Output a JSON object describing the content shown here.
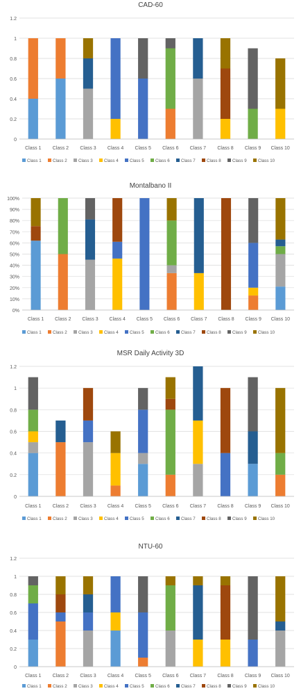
{
  "colors": {
    "Class 1": "#5b9bd5",
    "Class 2": "#ed7d31",
    "Class 3": "#a5a5a5",
    "Class 4": "#ffc000",
    "Class 5": "#4472c4",
    "Class 6": "#70ad47",
    "Class 7": "#255e91",
    "Class 8": "#9e480e",
    "Class 9": "#636363",
    "Class 10": "#997300"
  },
  "chart_data": [
    {
      "type": "bar",
      "stacked": true,
      "title": "CAD-60",
      "categories": [
        "Class 1",
        "Class 2",
        "Class 3",
        "Class 4",
        "Class 5",
        "Class 6",
        "Class 7",
        "Class 8",
        "Class 9",
        "Class 10"
      ],
      "yticks": [
        "0",
        "0.2",
        "0.4",
        "0.6",
        "0.8",
        "1",
        "1.2"
      ],
      "ylim": [
        0,
        1.2
      ],
      "grid": true,
      "legend": "bottom",
      "series": [
        {
          "name": "Class 1",
          "values": [
            0.4,
            0.6,
            0,
            0,
            0,
            0,
            0,
            0,
            0,
            0
          ]
        },
        {
          "name": "Class 2",
          "values": [
            0.6,
            0.4,
            0,
            0,
            0,
            0.3,
            0,
            0,
            0,
            0
          ]
        },
        {
          "name": "Class 3",
          "values": [
            0,
            0,
            0.5,
            0,
            0,
            0,
            0.6,
            0,
            0,
            0
          ]
        },
        {
          "name": "Class 4",
          "values": [
            0,
            0,
            0,
            0.2,
            0,
            0,
            0,
            0.2,
            0,
            0.3
          ]
        },
        {
          "name": "Class 5",
          "values": [
            0,
            0,
            0,
            0.8,
            0.6,
            0,
            0,
            0,
            0,
            0
          ]
        },
        {
          "name": "Class 6",
          "values": [
            0,
            0,
            0,
            0,
            0,
            0.6,
            0,
            0,
            0.3,
            0
          ]
        },
        {
          "name": "Class 7",
          "values": [
            0,
            0,
            0.3,
            0,
            0,
            0,
            0.4,
            0,
            0,
            0
          ]
        },
        {
          "name": "Class 8",
          "values": [
            0,
            0,
            0,
            0,
            0,
            0,
            0,
            0.5,
            0,
            0
          ]
        },
        {
          "name": "Class 9",
          "values": [
            0,
            0,
            0,
            0,
            0.4,
            0.1,
            0,
            0,
            0.6,
            0
          ]
        },
        {
          "name": "Class 10",
          "values": [
            0,
            0,
            0.2,
            0,
            0,
            0,
            0,
            0.3,
            0,
            0.5
          ]
        }
      ]
    },
    {
      "type": "bar",
      "stacked": true,
      "title": "Montalbano II",
      "categories": [
        "Class 1",
        "Class 2",
        "Class 3",
        "Class 4",
        "Class 5",
        "Class 6",
        "Class 7",
        "Class 8",
        "Class 9",
        "Class 10"
      ],
      "yticks": [
        "0%",
        "10%",
        "20%",
        "30%",
        "40%",
        "50%",
        "60%",
        "70%",
        "80%",
        "90%",
        "100%"
      ],
      "ylim": [
        0,
        1
      ],
      "grid": true,
      "legend": "bottom",
      "series": [
        {
          "name": "Class 1",
          "values": [
            0.62,
            0,
            0,
            0,
            0,
            0,
            0,
            0,
            0,
            0.21
          ]
        },
        {
          "name": "Class 2",
          "values": [
            0,
            0.5,
            0,
            0,
            0,
            0.33,
            0,
            0,
            0.13,
            0
          ]
        },
        {
          "name": "Class 3",
          "values": [
            0,
            0,
            0.45,
            0,
            0,
            0.07,
            0,
            0,
            0,
            0.29
          ]
        },
        {
          "name": "Class 4",
          "values": [
            0,
            0,
            0,
            0.46,
            0,
            0,
            0.33,
            0,
            0.07,
            0
          ]
        },
        {
          "name": "Class 5",
          "values": [
            0,
            0,
            0,
            0.15,
            1.0,
            0,
            0,
            0,
            0.4,
            0
          ]
        },
        {
          "name": "Class 6",
          "values": [
            0,
            0.5,
            0,
            0,
            0,
            0.4,
            0,
            0,
            0,
            0.07
          ]
        },
        {
          "name": "Class 7",
          "values": [
            0,
            0,
            0.36,
            0,
            0,
            0,
            0.67,
            0,
            0,
            0.06
          ]
        },
        {
          "name": "Class 8",
          "values": [
            0.13,
            0,
            0,
            0.39,
            0,
            0,
            0,
            1.0,
            0,
            0
          ]
        },
        {
          "name": "Class 9",
          "values": [
            0,
            0,
            0.19,
            0,
            0,
            0,
            0,
            0,
            0.4,
            0
          ]
        },
        {
          "name": "Class 10",
          "values": [
            0.25,
            0,
            0,
            0,
            0,
            0.2,
            0,
            0,
            0,
            0.37
          ]
        }
      ]
    },
    {
      "type": "bar",
      "stacked": true,
      "title": "MSR Daily Activity 3D",
      "categories": [
        "Class 1",
        "Class 2",
        "Class 3",
        "Class 4",
        "Class 5",
        "Class 6",
        "Class 7",
        "Class 8",
        "Class 9",
        "Class 10"
      ],
      "yticks": [
        "0",
        "0.2",
        "0.4",
        "0.6",
        "0.8",
        "1",
        "1.2"
      ],
      "ylim": [
        0,
        1.2
      ],
      "grid": true,
      "legend": "bottom",
      "series": [
        {
          "name": "Class 1",
          "values": [
            0.4,
            0,
            0,
            0,
            0.3,
            0,
            0,
            0,
            0.3,
            0
          ]
        },
        {
          "name": "Class 2",
          "values": [
            0,
            0.5,
            0,
            0.1,
            0,
            0.2,
            0,
            0,
            0,
            0.2
          ]
        },
        {
          "name": "Class 3",
          "values": [
            0.1,
            0,
            0.5,
            0,
            0.1,
            0,
            0.3,
            0,
            0,
            0
          ]
        },
        {
          "name": "Class 4",
          "values": [
            0.1,
            0,
            0,
            0.3,
            0,
            0,
            0.4,
            0,
            0,
            0
          ]
        },
        {
          "name": "Class 5",
          "values": [
            0,
            0,
            0.2,
            0,
            0.4,
            0,
            0,
            0.4,
            0,
            0
          ]
        },
        {
          "name": "Class 6",
          "values": [
            0.2,
            0,
            0,
            0,
            0,
            0.6,
            0,
            0,
            0,
            0.2
          ]
        },
        {
          "name": "Class 7",
          "values": [
            0,
            0.2,
            0,
            0,
            0,
            0,
            0.5,
            0,
            0.3,
            0
          ]
        },
        {
          "name": "Class 8",
          "values": [
            0,
            0,
            0.3,
            0,
            0,
            0.1,
            0,
            0.6,
            0,
            0
          ]
        },
        {
          "name": "Class 9",
          "values": [
            0.3,
            0,
            0,
            0,
            0.2,
            0,
            0,
            0,
            0.5,
            0
          ]
        },
        {
          "name": "Class 10",
          "values": [
            0,
            0,
            0,
            0.2,
            0,
            0.2,
            0,
            0,
            0,
            0.6
          ]
        }
      ]
    },
    {
      "type": "bar",
      "stacked": true,
      "title": "NTU-60",
      "categories": [
        "Class 1",
        "Class 2",
        "Class 3",
        "Class 4",
        "Class 5",
        "Class 6",
        "Class 7",
        "Class 8",
        "Class 9",
        "Class 10"
      ],
      "yticks": [
        "0",
        "0.2",
        "0.4",
        "0.6",
        "0.8",
        "1",
        "1.2"
      ],
      "ylim": [
        0,
        1.2
      ],
      "grid": true,
      "legend": "bottom",
      "series": [
        {
          "name": "Class 1",
          "values": [
            0.3,
            0,
            0,
            0.4,
            0,
            0,
            0,
            0,
            0,
            0
          ]
        },
        {
          "name": "Class 2",
          "values": [
            0,
            0.5,
            0,
            0,
            0.1,
            0,
            0,
            0,
            0,
            0
          ]
        },
        {
          "name": "Class 3",
          "values": [
            0,
            0,
            0.4,
            0,
            0,
            0.4,
            0,
            0,
            0,
            0.4
          ]
        },
        {
          "name": "Class 4",
          "values": [
            0,
            0,
            0,
            0.2,
            0,
            0,
            0.3,
            0.3,
            0,
            0
          ]
        },
        {
          "name": "Class 5",
          "values": [
            0.4,
            0.1,
            0.2,
            0.4,
            0.5,
            0,
            0,
            0,
            0.3,
            0
          ]
        },
        {
          "name": "Class 6",
          "values": [
            0.2,
            0,
            0,
            0,
            0,
            0.5,
            0,
            0,
            0,
            0
          ]
        },
        {
          "name": "Class 7",
          "values": [
            0,
            0,
            0.2,
            0,
            0,
            0,
            0.6,
            0,
            0,
            0.1
          ]
        },
        {
          "name": "Class 8",
          "values": [
            0,
            0.2,
            0,
            0,
            0,
            0,
            0,
            0.6,
            0,
            0
          ]
        },
        {
          "name": "Class 9",
          "values": [
            0.1,
            0,
            0,
            0,
            0.4,
            0,
            0,
            0,
            0.7,
            0
          ]
        },
        {
          "name": "Class 10",
          "values": [
            0,
            0.2,
            0.2,
            0,
            0,
            0.1,
            0.1,
            0.1,
            0,
            0.5
          ]
        }
      ]
    }
  ]
}
